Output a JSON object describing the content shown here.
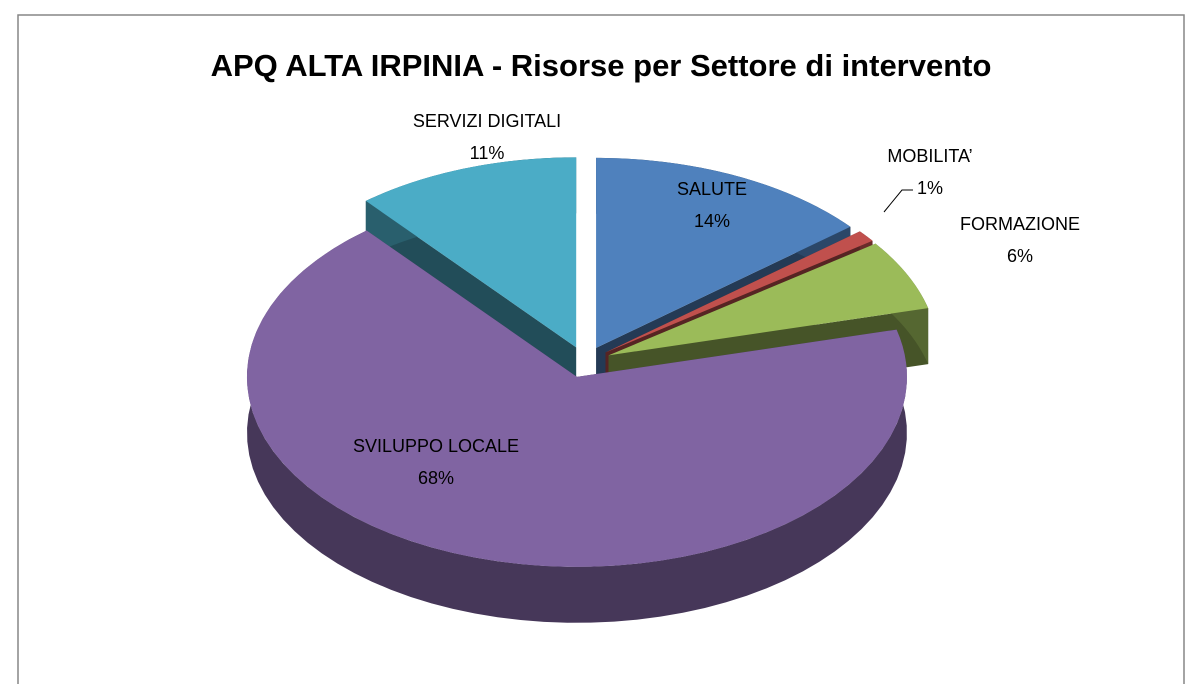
{
  "chart_data": {
    "type": "pie",
    "title": "APQ ALTA IRPINIA - Risorse per Settore di intervento",
    "categories": [
      "SALUTE",
      "MOBILITA’",
      "FORMAZIONE",
      "SVILUPPO LOCALE",
      "SERVIZI DIGITALI"
    ],
    "values": [
      14,
      1,
      6,
      68,
      11
    ],
    "value_labels": [
      "14%",
      "1%",
      "6%",
      "68%",
      "11%"
    ],
    "colors": [
      "#4f81bd",
      "#c0504d",
      "#9bbb59",
      "#8064a2",
      "#4bacc6"
    ]
  }
}
